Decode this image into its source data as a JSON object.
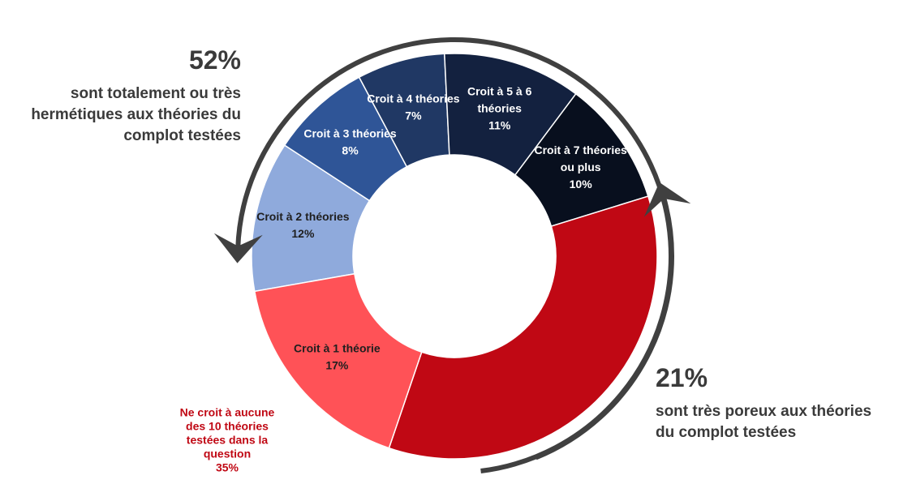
{
  "chart_data": {
    "type": "pie",
    "variant": "donut",
    "slices": [
      {
        "label": [
          "Croit à 2 théories"
        ],
        "value": 12,
        "display": "12%",
        "color": "#8faadc",
        "text_color": "#1f1f1f"
      },
      {
        "label": [
          "Croit à 3 théories"
        ],
        "value": 8,
        "display": "8%",
        "color": "#2f5597",
        "text_color": "#ffffff"
      },
      {
        "label": [
          "Croit à 4 théories"
        ],
        "value": 7,
        "display": "7%",
        "color": "#203864",
        "text_color": "#ffffff"
      },
      {
        "label": [
          "Croit à 5 à 6",
          "théories"
        ],
        "value": 11,
        "display": "11%",
        "color": "#13213f",
        "text_color": "#ffffff"
      },
      {
        "label": [
          "Croit à 7 théories",
          "ou plus"
        ],
        "value": 10,
        "display": "10%",
        "color": "#080f1e",
        "text_color": "#ffffff"
      },
      {
        "label": [
          "Ne croit à aucune",
          "des 10 théories",
          "testées dans la",
          "question"
        ],
        "value": 35,
        "display": "35%",
        "color": "#c00814",
        "text_color": "#c00814",
        "label_outside": true
      },
      {
        "label": [
          "Croit à 1 théorie"
        ],
        "value": 17,
        "display": "17%",
        "color": "#ff5257",
        "text_color": "#1f1f1f"
      }
    ],
    "legend": "none"
  },
  "annotations": {
    "left": {
      "pct": "52%",
      "text": "sont totalement ou très hermétiques aux théories du complot testées"
    },
    "right": {
      "pct": "21%",
      "text": "sont très poreux aux théories du complot testées"
    }
  },
  "colors": {
    "arrow": "#404040",
    "annotation_text": "#3a3a3a"
  }
}
